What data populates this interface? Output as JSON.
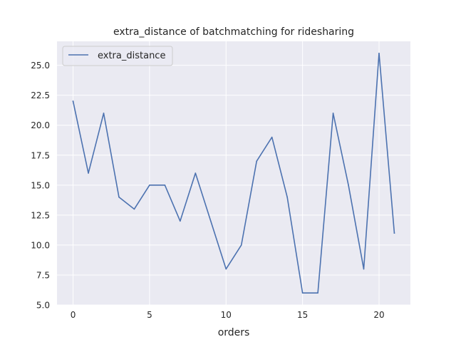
{
  "chart_data": {
    "type": "line",
    "title": "extra_distance of batchmatching for ridesharing",
    "xlabel": "orders",
    "ylabel": "",
    "x": [
      0,
      1,
      2,
      3,
      4,
      5,
      6,
      7,
      8,
      9,
      10,
      11,
      12,
      13,
      14,
      15,
      16,
      17,
      18,
      19,
      20,
      21
    ],
    "series": [
      {
        "name": "extra_distance",
        "color": "#4c72b0",
        "values": [
          22,
          16,
          21,
          14,
          13,
          15,
          15,
          12,
          16,
          12,
          8,
          10,
          17,
          19,
          14,
          6,
          6,
          21,
          15,
          8,
          26,
          11
        ]
      }
    ],
    "xlim": [
      -1.05,
      22.05
    ],
    "ylim": [
      5.0,
      27.0
    ],
    "xticks": [
      0,
      5,
      10,
      15,
      20
    ],
    "xtick_labels": [
      "0",
      "5",
      "10",
      "15",
      "20"
    ],
    "yticks": [
      5.0,
      7.5,
      10.0,
      12.5,
      15.0,
      17.5,
      20.0,
      22.5,
      25.0
    ],
    "ytick_labels": [
      "5.0",
      "7.5",
      "10.0",
      "12.5",
      "15.0",
      "17.5",
      "20.0",
      "22.5",
      "25.0"
    ],
    "grid": true,
    "legend_position": "top-left",
    "background_color": "#eaeaf2",
    "grid_color": "#ffffff"
  }
}
